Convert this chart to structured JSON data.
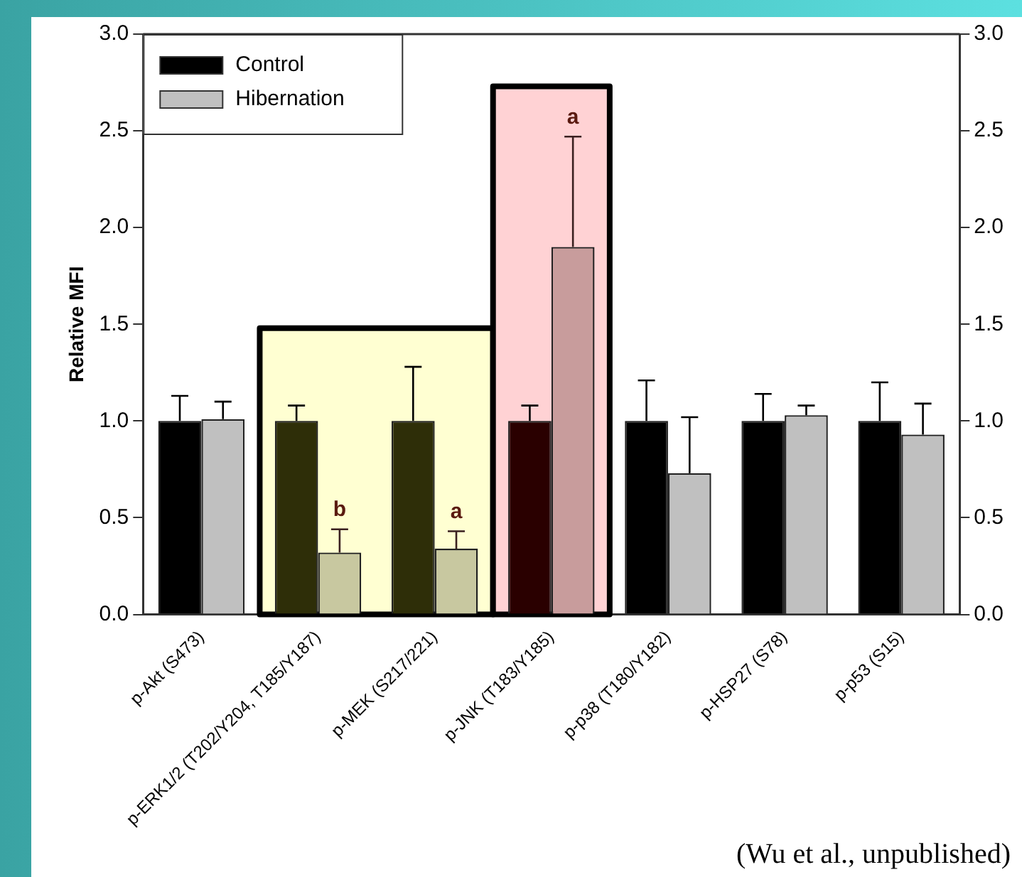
{
  "chart_data": {
    "type": "bar",
    "ylabel": "Relative MFI",
    "categories": [
      "p-Akt (S473)",
      "p-ERK1/2 (T202/Y204, T185/Y187)",
      "p-MEK (S217/221)",
      "p-JNK (T183/Y185)",
      "p-p38 (T180/Y182)",
      "p-HSP27 (S78)",
      "p-p53 (S15)"
    ],
    "series": [
      {
        "name": "Control",
        "color": "#000000",
        "colors": [
          "#000000",
          "#2e2e08",
          "#2e2e08",
          "#2a0000",
          "#000000",
          "#000000",
          "#000000"
        ],
        "values": [
          1.0,
          1.0,
          1.0,
          1.0,
          1.0,
          1.0,
          1.0
        ],
        "errors": [
          0.13,
          0.08,
          0.28,
          0.08,
          0.21,
          0.14,
          0.2
        ]
      },
      {
        "name": "Hibernation",
        "color": "#c0c0c0",
        "colors": [
          "#c0c0c0",
          "#c8c8a0",
          "#c8c8a0",
          "#c89c9c",
          "#c0c0c0",
          "#c0c0c0",
          "#c0c0c0"
        ],
        "values": [
          1.01,
          0.32,
          0.34,
          1.9,
          0.73,
          1.03,
          0.93
        ],
        "errors": [
          0.09,
          0.12,
          0.09,
          0.57,
          0.29,
          0.05,
          0.16
        ]
      }
    ],
    "ylim": [
      0,
      3
    ],
    "yticks": [
      {
        "value": 0,
        "label": "0.0"
      },
      {
        "value": 0.5,
        "label": "0.5"
      },
      {
        "value": 1,
        "label": "1.0"
      },
      {
        "value": 1.5,
        "label": "1.5"
      },
      {
        "value": 2,
        "label": "2.0"
      },
      {
        "value": 2.5,
        "label": "2.5"
      },
      {
        "value": 3,
        "label": "3.0"
      }
    ],
    "y2lim": [
      0,
      3
    ],
    "y2ticks": [
      {
        "value": 0,
        "label": "0.0"
      },
      {
        "value": 0.5,
        "label": "0.5"
      },
      {
        "value": 1,
        "label": "1.0"
      },
      {
        "value": 1.5,
        "label": "1.5"
      },
      {
        "value": 2,
        "label": "2.0"
      },
      {
        "value": 2.5,
        "label": "2.5"
      },
      {
        "value": 3,
        "label": "3.0"
      }
    ],
    "bands": [
      {
        "axis": "x",
        "from": "p-ERK1/2 (T202/Y204, T185/Y187)",
        "to": "p-MEK (S217/221)",
        "color": "#ffffd2"
      },
      {
        "axis": "x",
        "from": "p-JNK (T183/Y185)",
        "to": "p-JNK (T183/Y185)",
        "color": "#ffd2d4"
      }
    ],
    "annotations": [
      {
        "text": "b",
        "x": "p-ERK1/2 (T202/Y204, T185/Y187)",
        "y": 0.44
      },
      {
        "text": "a",
        "x": "p-MEK (S217/221)",
        "y": 0.43
      },
      "a",
      "(Wu et al., unpublished)"
    ],
    "legend": "top left",
    "grid": false
  }
}
